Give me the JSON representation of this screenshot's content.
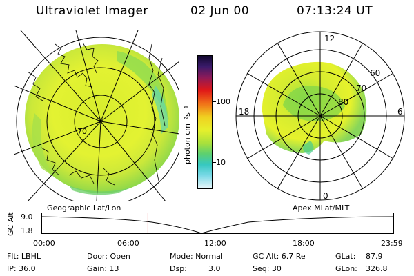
{
  "header": {
    "title": "Ultraviolet Imager",
    "date": "02 Jun 00",
    "time": "07:13:24 UT"
  },
  "colorbar": {
    "unit_label": "photon cm⁻²s⁻¹",
    "ticks": [
      "100",
      "10"
    ]
  },
  "left_map": {
    "lat_label": "70",
    "projection_label": "Geographic Lat/Lon"
  },
  "right_map": {
    "mlt_labels": [
      "12",
      "18",
      "6",
      "0"
    ],
    "mlat_labels": [
      "60",
      "70",
      "80"
    ],
    "projection_label": "Apex MLat/MLT"
  },
  "timeline": {
    "axis_label": "GC Alt",
    "y_ticks": [
      "9.0",
      "1.8"
    ],
    "x_ticks": [
      "00:00",
      "06:00",
      "12:00",
      "18:00",
      "23:59"
    ],
    "current_time_hours": 7.22
  },
  "footer": {
    "filter": "Flt: LBHL",
    "ip": "IP: 36.0",
    "door": "Door: Open",
    "gain": "Gain: 13",
    "mode": "Mode: Normal",
    "dsp_label": "Dsp:",
    "dsp_value": "3.0",
    "gc_alt": "GC Alt: 6.7 Re",
    "seq": "Seq: 30",
    "glat_label": "GLat:",
    "glat_value": "87.9",
    "glon_label": "GLon:",
    "glon_value": "326.8"
  },
  "colors": {
    "aurora_green": "#7bd63c",
    "aurora_yellow": "#e6f22c",
    "cyan": "#3ed0cc",
    "marker_red": "#e02020"
  }
}
